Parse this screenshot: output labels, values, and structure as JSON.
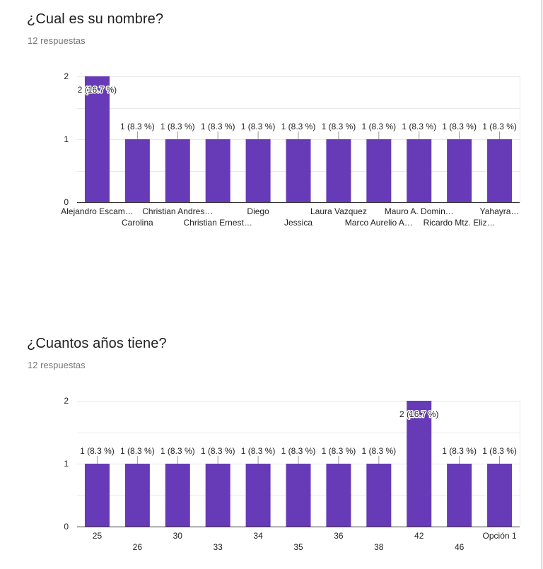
{
  "colors": {
    "bar": "#673ab7",
    "grid": "#e8e8e8",
    "axis": "#333333",
    "title": "#212121",
    "subtitle": "#757575"
  },
  "questions": [
    {
      "title": "¿Cual es su nombre?",
      "responses": "12 respuestas"
    },
    {
      "title": "¿Cuantos años tiene?",
      "responses": "12 respuestas"
    }
  ],
  "chart_data": [
    {
      "type": "bar",
      "categories": [
        "Alejandro Escam…",
        "Carolina",
        "Christian Andres…",
        "Christian Ernest…",
        "Diego",
        "Jessica",
        "Laura Vazquez",
        "Marco Aurelio A…",
        "Mauro A. Domin…",
        "Ricardo Mtz. Eliz…",
        "Yahayra…"
      ],
      "values": [
        2,
        1,
        1,
        1,
        1,
        1,
        1,
        1,
        1,
        1,
        1
      ],
      "data_labels": [
        "2 (16.7 %)",
        "1 (8.3 %)",
        "1 (8.3 %)",
        "1 (8.3 %)",
        "1 (8.3 %)",
        "1 (8.3 %)",
        "1 (8.3 %)",
        "1 (8.3 %)",
        "1 (8.3 %)",
        "1 (8.3 %)",
        "1 (8.3 %)"
      ],
      "yticks": [
        "0",
        "1",
        "2"
      ],
      "ylim": [
        0,
        2
      ],
      "xlabel": "",
      "ylabel": "",
      "grid": true
    },
    {
      "type": "bar",
      "categories": [
        "25",
        "26",
        "30",
        "33",
        "34",
        "35",
        "36",
        "38",
        "42",
        "46",
        "Opción 1"
      ],
      "values": [
        1,
        1,
        1,
        1,
        1,
        1,
        1,
        1,
        2,
        1,
        1
      ],
      "data_labels": [
        "1 (8.3 %)",
        "1 (8.3 %)",
        "1 (8.3 %)",
        "1 (8.3 %)",
        "1 (8.3 %)",
        "1 (8.3 %)",
        "1 (8.3 %)",
        "1 (8.3 %)",
        "2 (16.7 %)",
        "1 (8.3 %)",
        "1 (8.3 %)"
      ],
      "yticks": [
        "0",
        "1",
        "2"
      ],
      "ylim": [
        0,
        2
      ],
      "xlabel": "",
      "ylabel": "",
      "grid": true
    }
  ]
}
